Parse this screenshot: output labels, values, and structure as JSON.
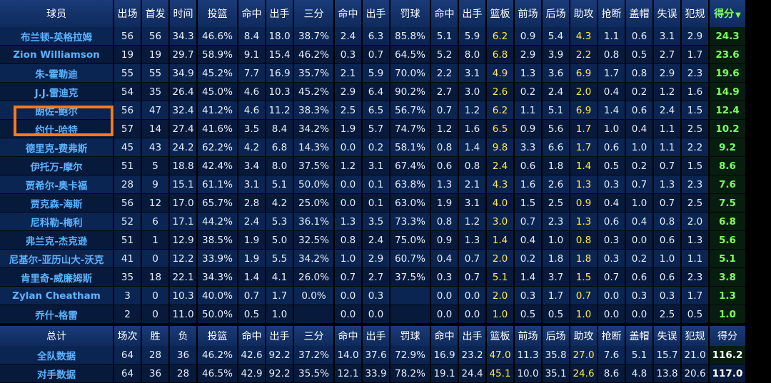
{
  "headers": [
    "球员",
    "出场",
    "首发",
    "时间",
    "投篮",
    "命中",
    "出手",
    "三分",
    "命中",
    "出手",
    "罚球",
    "命中",
    "出手",
    "篮板",
    "前场",
    "后场",
    "助攻",
    "抢断",
    "盖帽",
    "失误",
    "犯规",
    "得分"
  ],
  "sort_column": "得分",
  "sort_arrow": "▼",
  "players": [
    [
      "布兰顿-英格拉姆",
      "56",
      "56",
      "34.3",
      "46.6%",
      "8.4",
      "18.0",
      "38.7%",
      "2.4",
      "6.3",
      "85.8%",
      "5.1",
      "5.9",
      "6.2",
      "0.9",
      "5.4",
      "4.3",
      "1.1",
      "0.6",
      "3.1",
      "2.9",
      "24.3"
    ],
    [
      "Zion Williamson",
      "19",
      "19",
      "29.7",
      "58.9%",
      "9.1",
      "15.4",
      "46.2%",
      "0.3",
      "0.7",
      "64.5%",
      "5.2",
      "8.0",
      "6.8",
      "2.9",
      "3.9",
      "2.2",
      "0.8",
      "0.5",
      "2.7",
      "1.7",
      "23.6"
    ],
    [
      "朱-霍勒迪",
      "55",
      "55",
      "34.9",
      "45.2%",
      "7.7",
      "16.9",
      "35.7%",
      "2.1",
      "5.9",
      "70.0%",
      "2.2",
      "3.1",
      "4.9",
      "1.3",
      "3.6",
      "6.9",
      "1.7",
      "0.8",
      "2.9",
      "2.3",
      "19.6"
    ],
    [
      "J.J.雷迪克",
      "54",
      "35",
      "26.4",
      "45.0%",
      "4.6",
      "10.3",
      "45.2%",
      "2.9",
      "6.4",
      "90.2%",
      "2.7",
      "3.0",
      "2.6",
      "0.2",
      "2.4",
      "2.0",
      "0.4",
      "0.2",
      "1.2",
      "1.6",
      "14.9"
    ],
    [
      "朗佐-鲍尔",
      "56",
      "47",
      "32.4",
      "41.2%",
      "4.6",
      "11.2",
      "38.3%",
      "2.5",
      "6.5",
      "56.7%",
      "0.7",
      "1.2",
      "6.2",
      "1.1",
      "5.1",
      "6.9",
      "1.4",
      "0.6",
      "2.4",
      "1.5",
      "12.4"
    ],
    [
      "约什-哈特",
      "57",
      "14",
      "27.4",
      "41.6%",
      "3.5",
      "8.4",
      "34.2%",
      "1.9",
      "5.7",
      "74.7%",
      "1.2",
      "1.6",
      "6.5",
      "0.9",
      "5.6",
      "1.7",
      "1.0",
      "0.4",
      "1.1",
      "2.5",
      "10.2"
    ],
    [
      "德里克-费弗斯",
      "45",
      "43",
      "24.2",
      "62.2%",
      "4.2",
      "6.8",
      "14.3%",
      "0.0",
      "0.2",
      "58.1%",
      "0.8",
      "1.4",
      "9.8",
      "3.3",
      "6.6",
      "1.7",
      "0.6",
      "1.0",
      "1.1",
      "2.2",
      "9.2"
    ],
    [
      "伊托万-摩尔",
      "51",
      "5",
      "18.8",
      "42.4%",
      "3.4",
      "8.0",
      "37.5%",
      "1.2",
      "3.1",
      "67.4%",
      "0.6",
      "0.8",
      "2.4",
      "0.6",
      "1.8",
      "1.4",
      "0.5",
      "0.2",
      "0.7",
      "1.5",
      "8.6"
    ],
    [
      "贾希尔-奥卡福",
      "28",
      "9",
      "15.1",
      "61.1%",
      "3.1",
      "5.1",
      "50.0%",
      "0.0",
      "0.1",
      "63.8%",
      "1.3",
      "2.1",
      "4.3",
      "1.6",
      "2.6",
      "1.3",
      "0.3",
      "0.7",
      "1.3",
      "2.3",
      "7.6"
    ],
    [
      "贾克森-海斯",
      "56",
      "12",
      "17.0",
      "65.7%",
      "2.8",
      "4.2",
      "25.0%",
      "0.0",
      "0.1",
      "63.0%",
      "1.9",
      "3.1",
      "4.0",
      "1.5",
      "2.5",
      "0.9",
      "0.4",
      "1.0",
      "0.7",
      "2.5",
      "7.5"
    ],
    [
      "尼科勒-梅利",
      "52",
      "6",
      "17.1",
      "44.2%",
      "2.4",
      "5.3",
      "36.1%",
      "1.3",
      "3.5",
      "73.3%",
      "0.8",
      "1.2",
      "3.0",
      "0.7",
      "2.3",
      "1.3",
      "0.6",
      "0.4",
      "0.8",
      "2.0",
      "6.8"
    ],
    [
      "弗兰克-杰克逊",
      "51",
      "1",
      "12.9",
      "38.5%",
      "1.9",
      "5.0",
      "32.5%",
      "0.8",
      "2.4",
      "75.0%",
      "0.9",
      "1.3",
      "1.4",
      "0.4",
      "1.0",
      "0.8",
      "0.3",
      "0.0",
      "0.6",
      "1.3",
      "5.6"
    ],
    [
      "尼基尔-亚历山大-沃克",
      "41",
      "0",
      "12.2",
      "33.9%",
      "1.9",
      "5.5",
      "34.2%",
      "1.0",
      "2.9",
      "60.7%",
      "0.4",
      "0.7",
      "2.0",
      "0.2",
      "1.8",
      "1.8",
      "0.3",
      "0.2",
      "1.0",
      "1.1",
      "5.1"
    ],
    [
      "肯里奇-威廉姆斯",
      "35",
      "18",
      "22.1",
      "34.3%",
      "1.4",
      "4.1",
      "26.0%",
      "0.7",
      "2.7",
      "37.5%",
      "0.3",
      "0.7",
      "5.1",
      "1.4",
      "3.7",
      "1.5",
      "0.7",
      "0.6",
      "0.6",
      "2.3",
      "3.8"
    ],
    [
      "Zylan Cheatham",
      "3",
      "0",
      "10.3",
      "40.0%",
      "0.7",
      "1.7",
      "0.0%",
      "0.0",
      "0.3",
      "",
      "0.0",
      "0.0",
      "2.0",
      "0.3",
      "1.7",
      "0.7",
      "0.0",
      "0.3",
      "0.3",
      "1.7",
      "1.3"
    ],
    [
      "乔什-格雷",
      "2",
      "0",
      "11.0",
      "50.0%",
      "0.5",
      "1.0",
      "",
      "0.0",
      "0.0",
      "",
      "0.0",
      "0.0",
      "1.0",
      "0.5",
      "0.5",
      "1.0",
      "0.0",
      "0.0",
      "2.5",
      "0.5",
      "1.0"
    ]
  ],
  "totals_headers": [
    "总计",
    "场次",
    "胜",
    "负",
    "投篮",
    "命中",
    "出手",
    "三分",
    "命中",
    "出手",
    "罚球",
    "命中",
    "出手",
    "篮板",
    "前场",
    "后场",
    "助攻",
    "抢断",
    "盖帽",
    "失误",
    "犯规",
    "得分"
  ],
  "totals": [
    [
      "全队数据",
      "64",
      "28",
      "36",
      "46.2%",
      "42.6",
      "92.2",
      "37.2%",
      "14.0",
      "37.6",
      "72.9%",
      "16.9",
      "23.2",
      "47.0",
      "11.3",
      "35.8",
      "27.0",
      "7.6",
      "5.1",
      "15.7",
      "21.0",
      "116.2"
    ],
    [
      "对手数据",
      "64",
      "36",
      "28",
      "46.5%",
      "42.9",
      "92.2",
      "35.5%",
      "12.1",
      "33.9",
      "78.2%",
      "19.1",
      "24.4",
      "45.1",
      "10.0",
      "35.1",
      "24.6",
      "8.6",
      "4.8",
      "13.8",
      "20.6",
      "117.0"
    ]
  ],
  "highlight_color": "#ffe845",
  "score_color": "#7dff5a",
  "name_color": "#5bb3ff",
  "highlight_box_color": "#ff7a1a"
}
